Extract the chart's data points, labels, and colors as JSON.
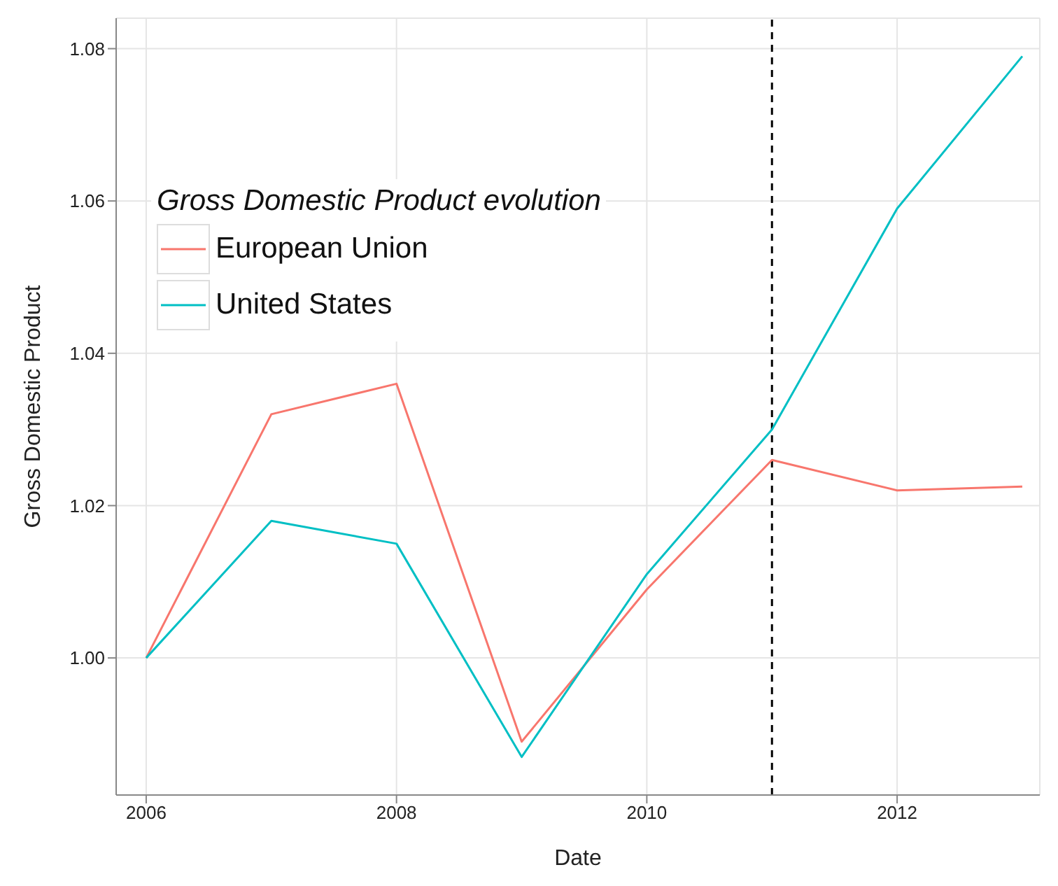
{
  "chart_data": {
    "type": "line",
    "xlabel": "Date",
    "ylabel": "Gross Domestic Product",
    "legend_title": "Gross Domestic Product evolution",
    "x": [
      2006,
      2007,
      2008,
      2009,
      2010,
      2011,
      2012,
      2013
    ],
    "series": [
      {
        "name": "European Union",
        "color": "#f8766d",
        "values": [
          1.0,
          1.032,
          1.036,
          0.989,
          1.009,
          1.026,
          1.022,
          1.0225
        ]
      },
      {
        "name": "United States",
        "color": "#00bfc4",
        "values": [
          1.0,
          1.018,
          1.015,
          0.987,
          1.011,
          1.03,
          1.059,
          1.079
        ]
      }
    ],
    "xlim": [
      2005.76,
      2013.14
    ],
    "xticks": [
      2006,
      2008,
      2010,
      2012
    ],
    "ylim": [
      0.982,
      1.084
    ],
    "yticks": [
      {
        "value": 1,
        "label": "1.00"
      },
      {
        "value": 1.02,
        "label": "1.02"
      },
      {
        "value": 1.04,
        "label": "1.04"
      },
      {
        "value": 1.06,
        "label": "1.06"
      },
      {
        "value": 1.08,
        "label": "1.08"
      }
    ],
    "ref_lines": [
      {
        "axis": "x",
        "value": 2011,
        "color": "#000000",
        "line_style": "dashed"
      }
    ],
    "grid": true,
    "legend": "top left",
    "marker": "none",
    "line_style": "solid"
  }
}
